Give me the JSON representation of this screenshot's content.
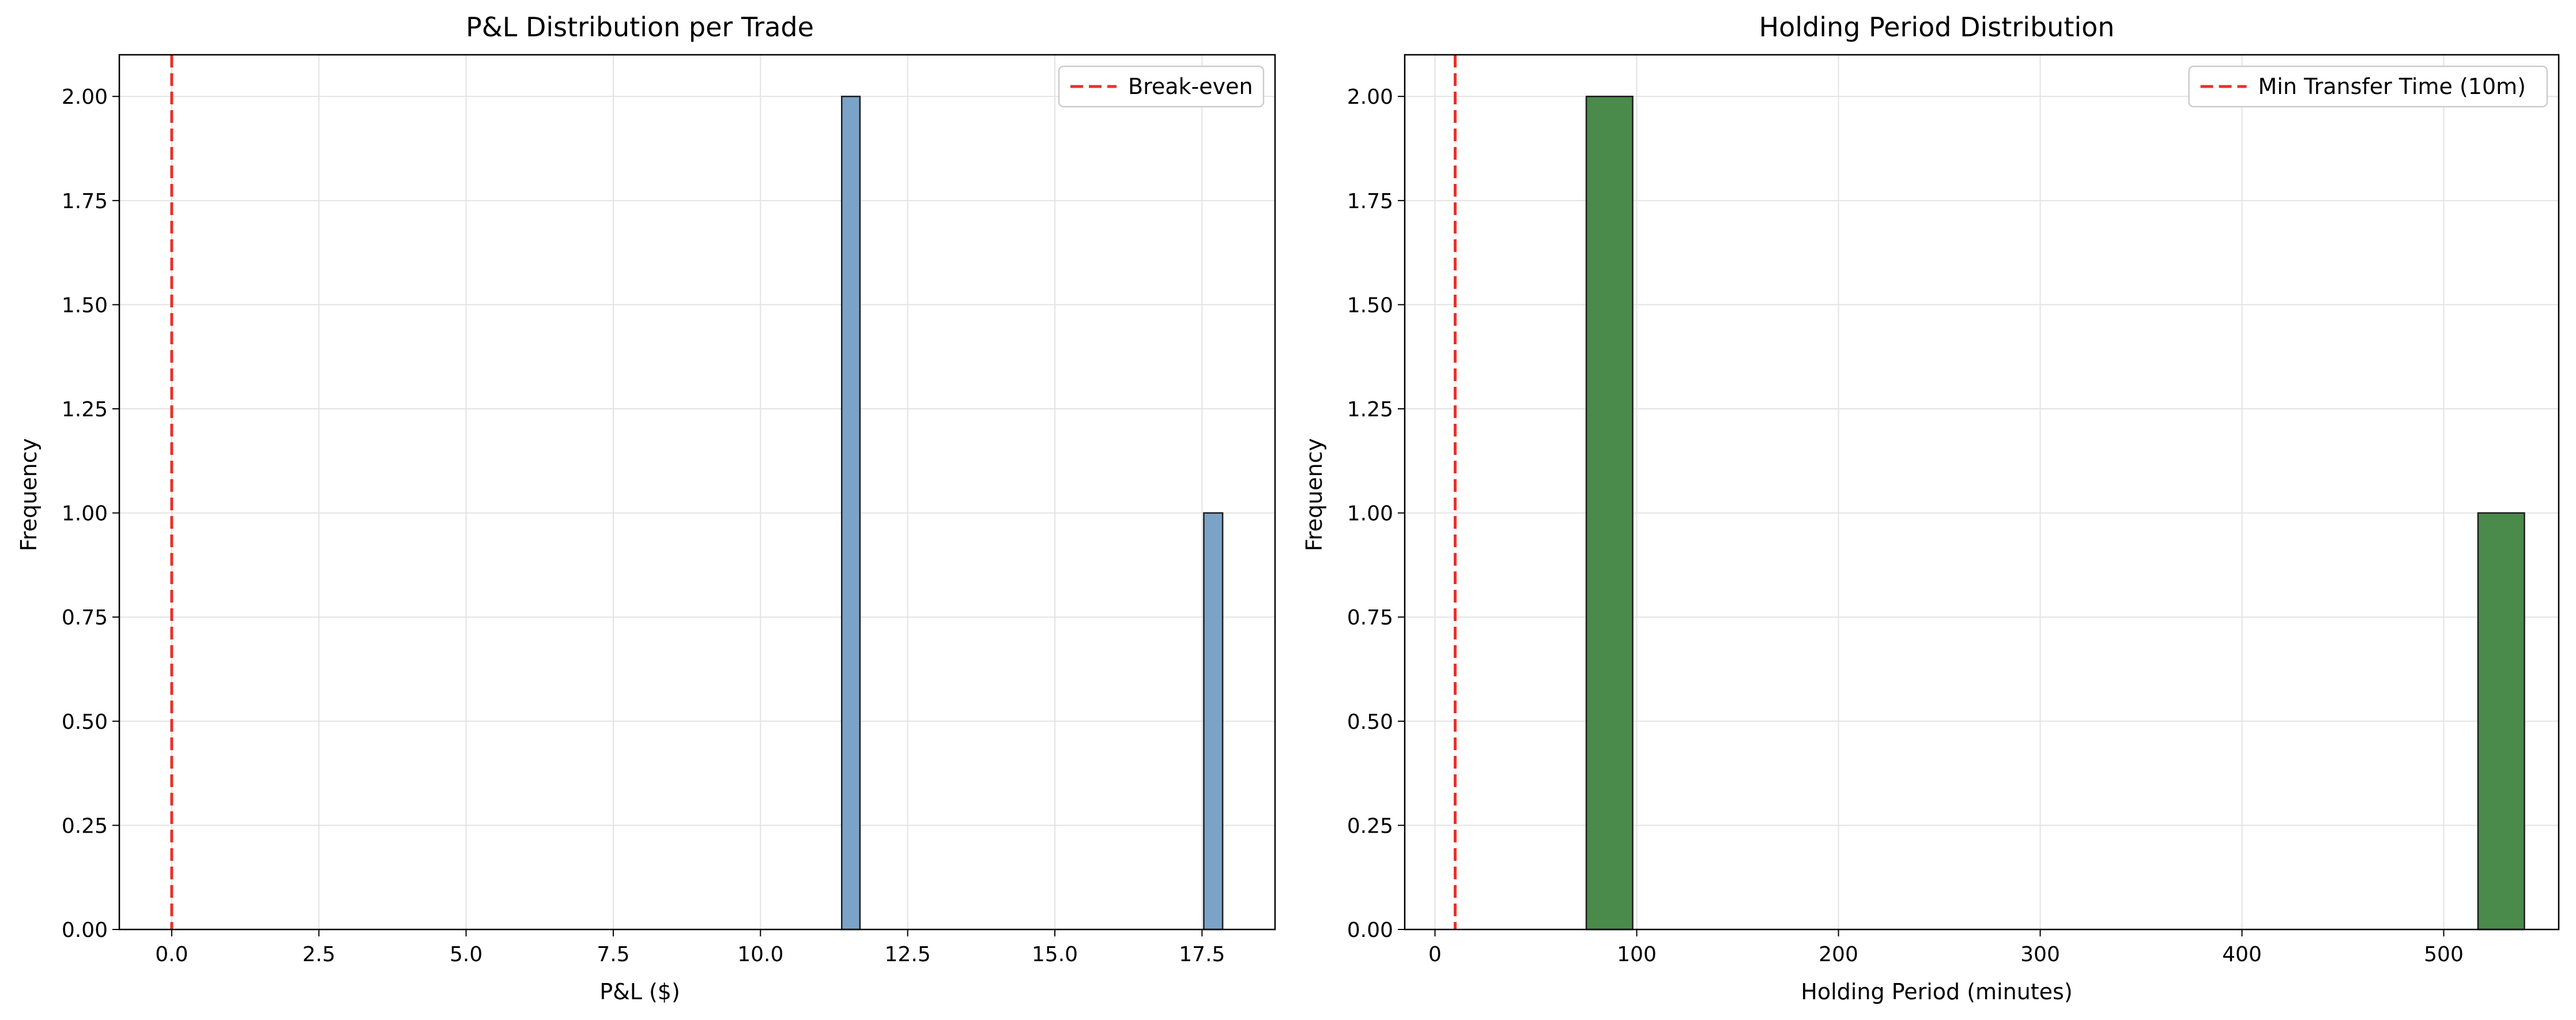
{
  "chart_data": [
    {
      "type": "bar",
      "title": "P&L Distribution per Trade",
      "xlabel": "P&L ($)",
      "ylabel": "Frequency",
      "xlim": [
        -0.89,
        18.74
      ],
      "ylim": [
        0,
        2.1
      ],
      "xticks": [
        "0.0",
        "2.5",
        "5.0",
        "7.5",
        "10.0",
        "12.5",
        "15.0",
        "17.5"
      ],
      "yticks": [
        "0.00",
        "0.25",
        "0.50",
        "0.75",
        "1.00",
        "1.25",
        "1.50",
        "1.75",
        "2.00"
      ],
      "grid": true,
      "legend_position": "top-right",
      "bars": [
        {
          "x0": 11.38,
          "x1": 11.69,
          "value": 2
        },
        {
          "x0": 17.53,
          "x1": 17.85,
          "value": 1
        }
      ],
      "reference_lines": [
        {
          "x": 0,
          "label": "Break-even",
          "color": "#e8312a",
          "style": "dashed"
        }
      ],
      "bar_color": "#7aa3c7"
    },
    {
      "type": "bar",
      "title": "Holding Period Distribution",
      "xlabel": "Holding Period (minutes)",
      "ylabel": "Frequency",
      "xlim": [
        -15,
        557
      ],
      "ylim": [
        0,
        2.1
      ],
      "xticks": [
        "0",
        "100",
        "200",
        "300",
        "400",
        "500"
      ],
      "yticks": [
        "0.00",
        "0.25",
        "0.50",
        "0.75",
        "1.00",
        "1.25",
        "1.50",
        "1.75",
        "2.00"
      ],
      "grid": true,
      "legend_position": "top-right",
      "bars": [
        {
          "x0": 75,
          "x1": 98,
          "value": 2
        },
        {
          "x0": 517,
          "x1": 540,
          "value": 1
        }
      ],
      "reference_lines": [
        {
          "x": 10,
          "label": "Min Transfer Time (10m)",
          "color": "#e8312a",
          "style": "dashed"
        }
      ],
      "bar_color": "#4a8a4a"
    }
  ]
}
